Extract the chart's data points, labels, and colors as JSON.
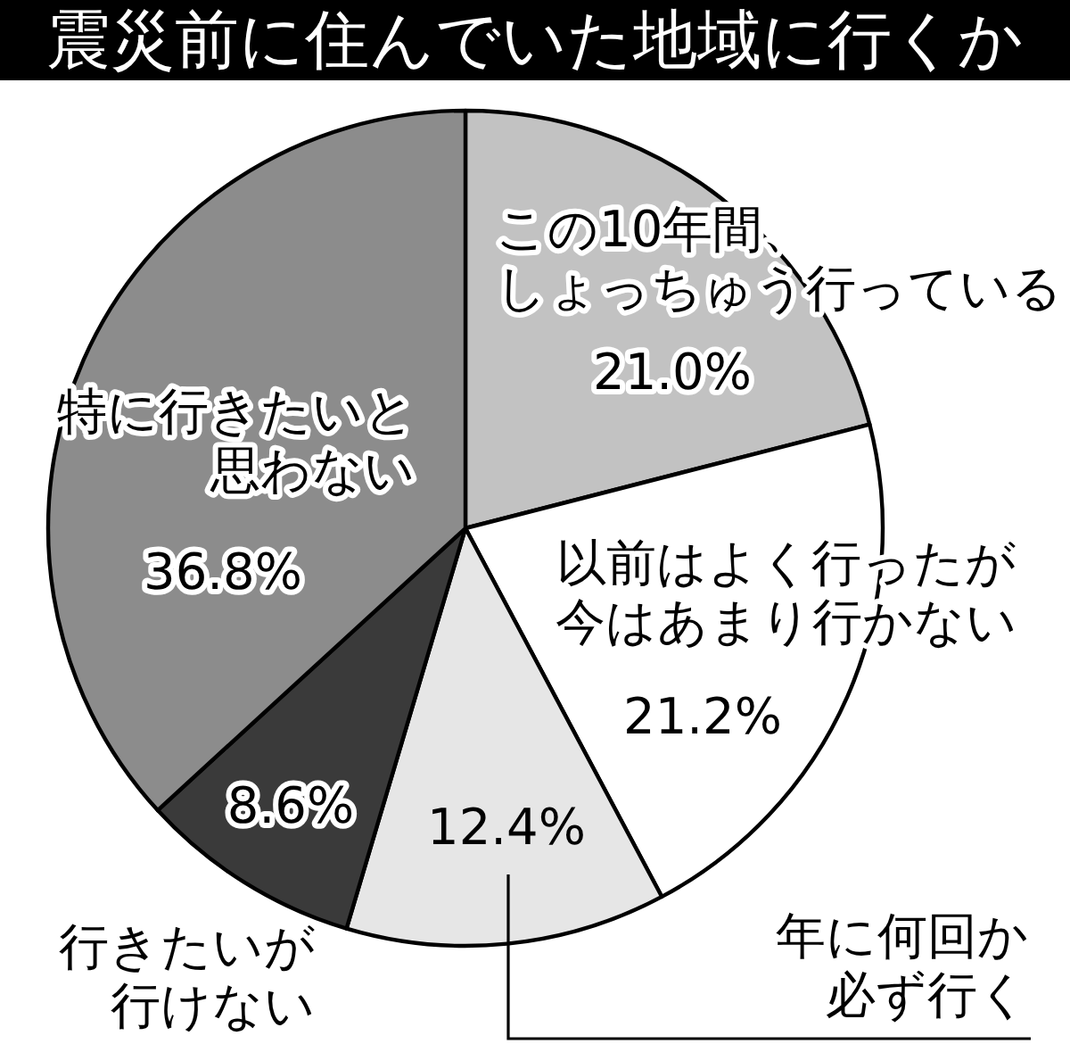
{
  "chart_data": {
    "type": "pie",
    "title": "震災前に住んでいた地域に行くか",
    "categories": [
      "この10年間、しょっちゅう行っている",
      "以前はよく行ったが今はあまり行かない",
      "年に何回か必ず行く",
      "行きたいが行けない",
      "特に行きたいと思わない"
    ],
    "values": [
      21.0,
      21.2,
      12.4,
      8.6,
      36.8
    ],
    "colors": [
      "#c2c2c2",
      "#ffffff",
      "#e6e6e6",
      "#3a3a3a",
      "#8c8c8c"
    ],
    "value_labels": [
      "21.0%",
      "21.2%",
      "12.4%",
      "8.6%",
      "36.8%"
    ]
  }
}
